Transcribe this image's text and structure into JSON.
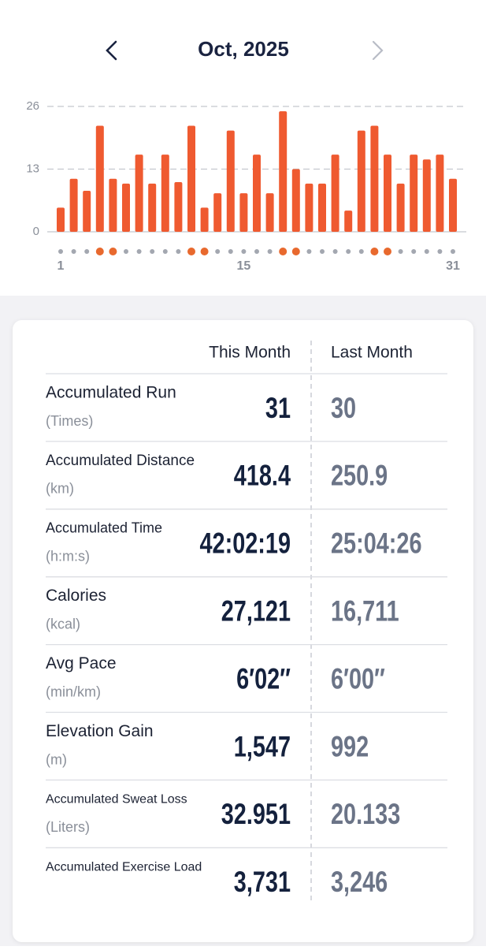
{
  "header": {
    "title": "Oct, 2025"
  },
  "chart_data": {
    "type": "bar",
    "categories": [
      "1",
      null,
      null,
      null,
      null,
      null,
      null,
      null,
      null,
      null,
      null,
      null,
      null,
      null,
      "15",
      null,
      null,
      null,
      null,
      null,
      null,
      null,
      null,
      null,
      null,
      null,
      null,
      null,
      null,
      null,
      "31"
    ],
    "values": [
      5,
      11,
      8.5,
      22,
      11,
      10,
      16,
      10,
      16,
      10.3,
      22,
      5,
      8,
      21,
      8,
      16,
      8,
      25,
      13,
      10,
      10,
      16,
      4.4,
      21,
      22,
      16,
      10,
      16,
      15,
      16,
      11
    ],
    "color": "#ef5a30",
    "ylim": [
      0,
      26
    ],
    "yticks": [
      0,
      13,
      26
    ],
    "grid": true,
    "day_markers": [
      false,
      false,
      false,
      true,
      true,
      false,
      false,
      false,
      false,
      false,
      true,
      true,
      false,
      false,
      false,
      false,
      false,
      true,
      true,
      false,
      false,
      false,
      false,
      false,
      true,
      true,
      false,
      false,
      false,
      false,
      false
    ],
    "marker_color": "#e8692e"
  },
  "table": {
    "columns": [
      "This Month",
      "Last Month"
    ],
    "rows": [
      {
        "label": "Accumulated Run",
        "unit": "(Times)",
        "this_month": "31",
        "last_month": "30"
      },
      {
        "label": "Accumulated Distance",
        "unit": "(km)",
        "this_month": "418.4",
        "last_month": "250.9"
      },
      {
        "label": "Accumulated Time",
        "unit": "(h:m:s)",
        "this_month": "42:02:19",
        "last_month": "25:04:26"
      },
      {
        "label": "Calories",
        "unit": "(kcal)",
        "this_month": "27,121",
        "last_month": "16,711"
      },
      {
        "label": "Avg Pace",
        "unit": "(min/km)",
        "this_month": "6′02″",
        "last_month": "6′00″"
      },
      {
        "label": "Elevation Gain",
        "unit": "(m)",
        "this_month": "1,547",
        "last_month": "992"
      },
      {
        "label": "Accumulated Sweat Loss",
        "unit": "(Liters)",
        "this_month": "32.951",
        "last_month": "20.133"
      },
      {
        "label": "Accumulated Exercise Load",
        "this_month": "3,731",
        "last_month": "3,246"
      }
    ]
  }
}
